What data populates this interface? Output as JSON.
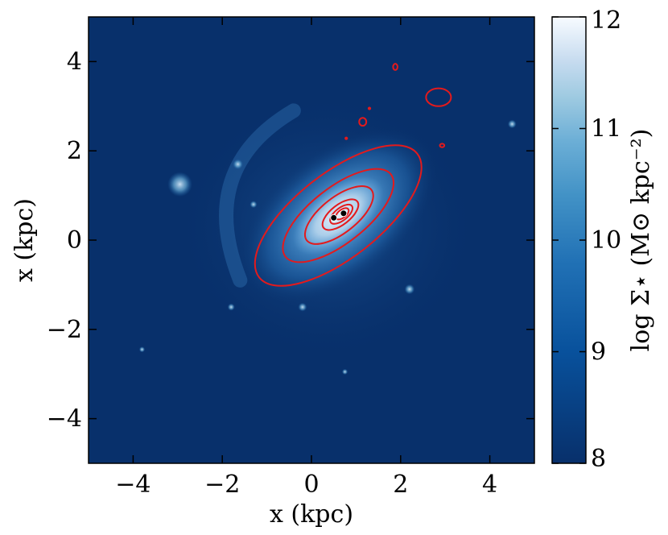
{
  "chart_data": {
    "type": "heatmap",
    "title": "",
    "xlabel": "x (kpc)",
    "ylabel": "x (kpc)",
    "xlim": [
      -5,
      5
    ],
    "ylim": [
      -5,
      5
    ],
    "x_ticks": [
      -4,
      -2,
      0,
      2,
      4
    ],
    "y_ticks": [
      -4,
      -2,
      0,
      2,
      4
    ],
    "x_tick_labels": [
      "−4",
      "−2",
      "0",
      "2",
      "4"
    ],
    "y_tick_labels": [
      "−4",
      "−2",
      "0",
      "2",
      "4"
    ],
    "grid": false,
    "colormap": "Blues_r",
    "colors": {
      "low": "#08306b",
      "high": "#f7fbff",
      "contour": "#e41a1c",
      "marker": "#000000"
    },
    "colorbar": {
      "label": "log Σ⋆ (M⊙ kpc⁻²)",
      "range": [
        8,
        12
      ],
      "ticks": [
        8,
        9,
        10,
        11,
        12
      ],
      "tick_labels": [
        "8",
        "9",
        "10",
        "11",
        "12"
      ]
    },
    "center": {
      "x": 0.6,
      "y": 0.55
    },
    "peak_log_sigma": 11.0,
    "background_log_sigma": 8.0,
    "markers": [
      {
        "x": 0.5,
        "y": 0.5
      },
      {
        "x": 0.72,
        "y": 0.6
      }
    ],
    "contours": [
      {
        "type": "ellipse",
        "cx": 0.6,
        "cy": 0.55,
        "rx": 2.25,
        "ry": 0.95,
        "angle_deg": 38
      },
      {
        "type": "ellipse",
        "cx": 0.6,
        "cy": 0.55,
        "rx": 1.5,
        "ry": 0.62,
        "angle_deg": 38
      },
      {
        "type": "ellipse",
        "cx": 0.62,
        "cy": 0.56,
        "rx": 0.92,
        "ry": 0.4,
        "angle_deg": 38
      },
      {
        "type": "ellipse",
        "cx": 0.65,
        "cy": 0.57,
        "rx": 0.48,
        "ry": 0.22,
        "angle_deg": 38
      },
      {
        "type": "ellipse",
        "cx": 0.67,
        "cy": 0.58,
        "rx": 0.3,
        "ry": 0.14,
        "angle_deg": 38
      },
      {
        "type": "ellipse",
        "cx": 0.69,
        "cy": 0.59,
        "rx": 0.17,
        "ry": 0.09,
        "angle_deg": 38
      },
      {
        "type": "blob",
        "cx": 2.85,
        "cy": 3.2,
        "rx": 0.28,
        "ry": 0.2
      },
      {
        "type": "blob",
        "cx": 1.88,
        "cy": 3.88,
        "rx": 0.05,
        "ry": 0.07
      },
      {
        "type": "blob",
        "cx": 1.15,
        "cy": 2.65,
        "rx": 0.08,
        "ry": 0.09
      },
      {
        "type": "blob",
        "cx": 2.93,
        "cy": 2.12,
        "rx": 0.05,
        "ry": 0.04
      },
      {
        "type": "blob",
        "cx": 1.3,
        "cy": 2.95,
        "rx": 0.02,
        "ry": 0.02
      },
      {
        "type": "blob",
        "cx": 0.78,
        "cy": 2.28,
        "rx": 0.02,
        "ry": 0.02
      }
    ],
    "clumps": [
      {
        "x": -2.95,
        "y": 1.25,
        "log_sigma": 10.3
      },
      {
        "x": -1.65,
        "y": 1.7,
        "log_sigma": 9.3
      },
      {
        "x": 4.5,
        "y": 2.6,
        "log_sigma": 9.2
      },
      {
        "x": -1.8,
        "y": -1.5,
        "log_sigma": 9.1
      },
      {
        "x": -3.8,
        "y": -2.45,
        "log_sigma": 9.0
      },
      {
        "x": 0.75,
        "y": -2.95,
        "log_sigma": 9.0
      },
      {
        "x": -1.3,
        "y": 0.8,
        "log_sigma": 9.1
      },
      {
        "x": 2.2,
        "y": -1.1,
        "log_sigma": 9.3
      },
      {
        "x": -0.2,
        "y": -1.5,
        "log_sigma": 9.2
      }
    ]
  }
}
